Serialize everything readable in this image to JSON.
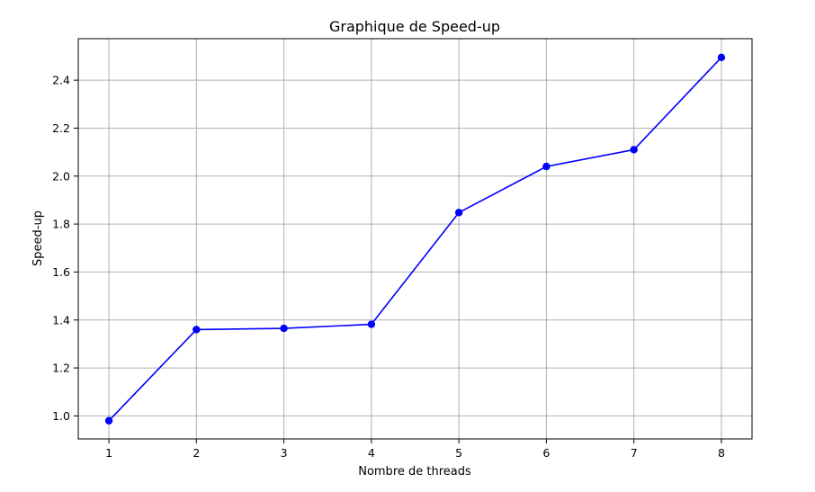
{
  "chart_data": {
    "type": "line",
    "title": "Graphique de Speed-up",
    "xlabel": "Nombre de threads",
    "ylabel": "Speed-up",
    "x": [
      1,
      2,
      3,
      4,
      5,
      6,
      7,
      8
    ],
    "series": [
      {
        "values": [
          0.98,
          1.36,
          1.365,
          1.382,
          1.848,
          2.04,
          2.11,
          2.495
        ],
        "color": "#0000ff",
        "marker": "circle"
      }
    ],
    "xticks": [
      1,
      2,
      3,
      4,
      5,
      6,
      7,
      8
    ],
    "yticks": [
      1.0,
      1.2,
      1.4,
      1.6,
      1.8,
      2.0,
      2.2,
      2.4
    ],
    "ytick_labels": [
      "1.0",
      "1.2",
      "1.4",
      "1.6",
      "1.8",
      "2.0",
      "2.2",
      "2.4"
    ],
    "xlim": [
      0.65,
      8.35
    ],
    "ylim": [
      0.904,
      2.573
    ],
    "grid": true,
    "grid_color": "#b0b0b0"
  }
}
